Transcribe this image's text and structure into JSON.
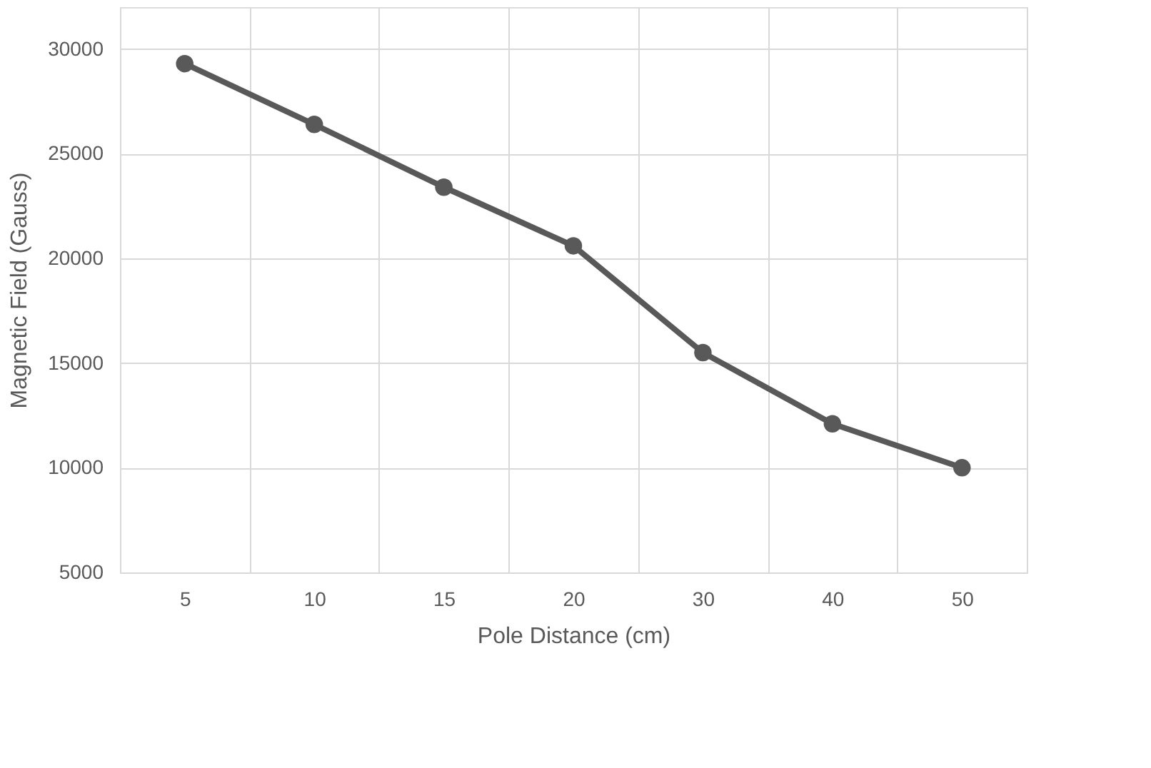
{
  "chart_data": {
    "type": "line",
    "xlabel": "Pole Distance (cm)",
    "ylabel": "Magnetic Field (Gauss)",
    "categories": [
      "5",
      "10",
      "15",
      "20",
      "30",
      "40",
      "50"
    ],
    "series": [
      {
        "color": "#595959",
        "values": [
          29300,
          26400,
          23400,
          20600,
          15500,
          12100,
          10000
        ]
      }
    ],
    "ylim": [
      5000,
      32000
    ],
    "yticks": [
      5000,
      10000,
      15000,
      20000,
      25000,
      30000
    ],
    "grid": true,
    "marker": "circle",
    "line_style": "solid",
    "legend": false
  }
}
